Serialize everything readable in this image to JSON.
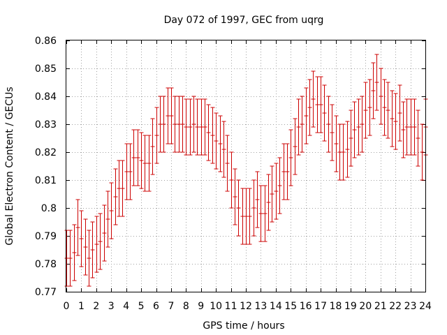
{
  "chart_data": {
    "type": "scatter",
    "title": "Day 072 of 1997, GEC from uqrg",
    "xlabel": "GPS time / hours",
    "ylabel": "Global Electron Content / GECUs",
    "xlim": [
      0,
      24
    ],
    "ylim": [
      0.77,
      0.86
    ],
    "xticks": [
      0,
      1,
      2,
      3,
      4,
      5,
      6,
      7,
      8,
      9,
      10,
      11,
      12,
      13,
      14,
      15,
      16,
      17,
      18,
      19,
      20,
      21,
      22,
      23,
      24
    ],
    "yticks": [
      0.77,
      0.78,
      0.79,
      0.8,
      0.81,
      0.82,
      0.83,
      0.84,
      0.85,
      0.86
    ],
    "xtick_labels": [
      "0",
      "1",
      "2",
      "3",
      "4",
      "5",
      "6",
      "7",
      "8",
      "9",
      "10",
      "11",
      "12",
      "13",
      "14",
      "15",
      "16",
      "17",
      "18",
      "19",
      "20",
      "21",
      "22",
      "23",
      "24"
    ],
    "ytick_labels": [
      "0.77",
      "0.78",
      "0.79",
      "0.8",
      "0.81",
      "0.82",
      "0.83",
      "0.84",
      "0.85",
      "0.86"
    ],
    "grid": true,
    "color": "#cc0000",
    "error_half_width": 0.01,
    "series": [
      {
        "x": [
          0,
          0.25,
          0.5,
          0.75,
          1,
          1.25,
          1.5,
          1.75,
          2,
          2.25,
          2.5,
          2.75,
          3,
          3.25,
          3.5,
          3.75,
          4,
          4.25,
          4.5,
          4.75,
          5,
          5.25,
          5.5,
          5.75,
          6,
          6.25,
          6.5,
          6.75,
          7,
          7.25,
          7.5,
          7.75,
          8,
          8.25,
          8.5,
          8.75,
          9,
          9.25,
          9.5,
          9.75,
          10,
          10.25,
          10.5,
          10.75,
          11,
          11.25,
          11.5,
          11.75,
          12,
          12.25,
          12.5,
          12.75,
          13,
          13.25,
          13.5,
          13.75,
          14,
          14.25,
          14.5,
          14.75,
          15,
          15.25,
          15.5,
          15.75,
          16,
          16.25,
          16.5,
          16.75,
          17,
          17.25,
          17.5,
          17.75,
          18,
          18.25,
          18.5,
          18.75,
          19,
          19.25,
          19.5,
          19.75,
          20,
          20.25,
          20.5,
          20.75,
          21,
          21.25,
          21.5,
          21.75,
          22,
          22.25,
          22.5,
          22.75,
          23,
          23.25,
          23.5,
          23.75,
          24
        ],
        "y": [
          0.782,
          0.782,
          0.784,
          0.793,
          0.789,
          0.786,
          0.782,
          0.785,
          0.787,
          0.788,
          0.791,
          0.796,
          0.799,
          0.804,
          0.807,
          0.807,
          0.813,
          0.813,
          0.818,
          0.818,
          0.817,
          0.816,
          0.816,
          0.822,
          0.826,
          0.83,
          0.83,
          0.833,
          0.833,
          0.83,
          0.83,
          0.83,
          0.829,
          0.829,
          0.83,
          0.829,
          0.829,
          0.829,
          0.827,
          0.826,
          0.824,
          0.823,
          0.821,
          0.816,
          0.81,
          0.804,
          0.8,
          0.797,
          0.797,
          0.797,
          0.8,
          0.803,
          0.798,
          0.798,
          0.802,
          0.805,
          0.806,
          0.808,
          0.813,
          0.813,
          0.818,
          0.822,
          0.829,
          0.83,
          0.833,
          0.836,
          0.839,
          0.837,
          0.837,
          0.834,
          0.83,
          0.827,
          0.823,
          0.82,
          0.82,
          0.821,
          0.825,
          0.828,
          0.829,
          0.83,
          0.835,
          0.836,
          0.842,
          0.845,
          0.84,
          0.836,
          0.835,
          0.832,
          0.831,
          0.834,
          0.828,
          0.829,
          0.829,
          0.829,
          0.825,
          0.82,
          0.829
        ]
      }
    ]
  }
}
